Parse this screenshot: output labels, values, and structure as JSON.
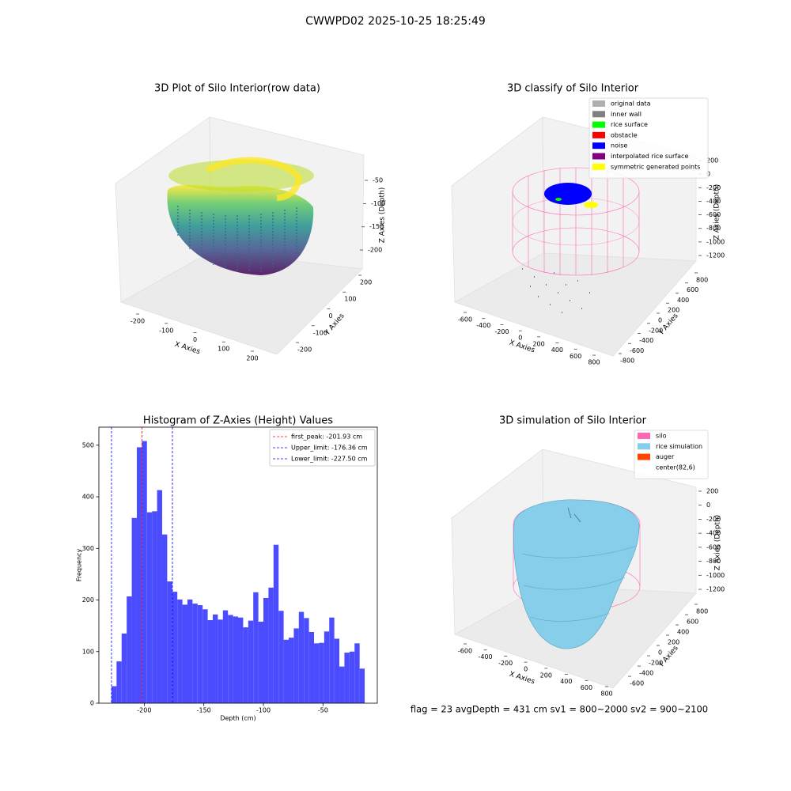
{
  "title": "CWWPD02 2025-10-25 18:25:49",
  "status": "flag = 23  avgDepth = 431 cm  sv1 = 800~2000  sv2 = 900~2100",
  "chart_data": [
    {
      "type": "scatter3d",
      "title": "3D Plot of Silo Interior(row data)",
      "xlabel": "X Axies",
      "ylabel": "Y Axies",
      "zlabel": "Z Axies (Depth)",
      "xlim": [
        -270,
        270
      ],
      "xticks": [
        -200,
        -100,
        0,
        100,
        200
      ],
      "ylim": [
        -270,
        270
      ],
      "yticks": [
        -200,
        -100,
        0,
        100,
        200
      ],
      "zlim": [
        -230,
        -30
      ],
      "zticks": [
        -50,
        -100,
        -150,
        -200
      ]
    },
    {
      "type": "scatter3d",
      "title": "3D classify of Silo Interior",
      "xlabel": "X Axies",
      "ylabel": "Y Axies",
      "zlabel": "Z Axies (Depth)",
      "xlim": [
        -750,
        900
      ],
      "xticks": [
        -600,
        -400,
        -200,
        0,
        200,
        400,
        600,
        800
      ],
      "ylim": [
        -950,
        950
      ],
      "yticks": [
        -800,
        -600,
        -400,
        -200,
        0,
        200,
        400,
        600,
        800
      ],
      "zlim": [
        -1300,
        300
      ],
      "zticks": [
        200,
        0,
        -200,
        -400,
        -600,
        -800,
        -1000,
        -1200
      ],
      "legend_entries": [
        {
          "name": "original data",
          "color": "#b0b0b0"
        },
        {
          "name": "inner wall",
          "color": "#808080"
        },
        {
          "name": "rice surface",
          "color": "#00ff00"
        },
        {
          "name": "obstacle",
          "color": "#ff0000"
        },
        {
          "name": "noise",
          "color": "#0000ff"
        },
        {
          "name": "interpolated rice surface",
          "color": "#800080"
        },
        {
          "name": "symmetric generated points",
          "color": "#ffff00"
        }
      ]
    },
    {
      "type": "histogram",
      "title": "Histogram of Z-Axies (Height) Values",
      "xlabel": "Depth (cm)",
      "ylabel": "Frequency",
      "color": "#4c4cff",
      "bins": [
        -227.5,
        -223.25,
        -219,
        -214.75,
        -210.5,
        -206.25,
        -202,
        -197.75,
        -193.5,
        -189.25,
        -185,
        -180.75,
        -176.5,
        -172.25,
        -168,
        -163.75,
        -159.5,
        -155.25,
        -151,
        -146.75,
        -142.5,
        -138.25,
        -134,
        -129.75,
        -125.5,
        -121.25,
        -117,
        -112.75,
        -108.5,
        -104.25,
        -100,
        -95.75,
        -91.5,
        -87.25,
        -83,
        -78.75,
        -74.5,
        -70.25,
        -66,
        -61.75,
        -57.5,
        -53.25,
        -49,
        -44.75,
        -40.5,
        -36.25,
        -32,
        -27.75,
        -23.5,
        -19.25,
        -15
      ],
      "counts": [
        33,
        81,
        135,
        207,
        359,
        496,
        508,
        370,
        372,
        413,
        327,
        236,
        216,
        201,
        191,
        201,
        193,
        190,
        182,
        161,
        172,
        162,
        180,
        171,
        168,
        166,
        147,
        160,
        215,
        158,
        204,
        224,
        307,
        179,
        123,
        127,
        145,
        177,
        165,
        138,
        116,
        117,
        139,
        166,
        125,
        71,
        98,
        100,
        116,
        67
      ],
      "xlim": [
        -238.1,
        -4.4
      ],
      "xticks": [
        -200,
        -150,
        -100,
        -50
      ],
      "ylim": [
        0,
        535
      ],
      "yticks": [
        0,
        100,
        200,
        300,
        400,
        500
      ],
      "vlines": [
        {
          "name": "first_peak: -201.93 cm",
          "value": -201.93,
          "color": "#ff0000"
        },
        {
          "name": "Upper_limit: -176.36 cm",
          "value": -176.36,
          "color": "#0000ff"
        },
        {
          "name": "Lower_limit: -227.50 cm",
          "value": -227.5,
          "color": "#0000ff"
        }
      ],
      "legend": "upper right"
    },
    {
      "type": "surface3d",
      "title": "3D simulation of Silo Interior",
      "xlabel": "X Axies",
      "ylabel": "Y Axies",
      "zlabel": "Z Axies (Depth)",
      "xlim": [
        -750,
        900
      ],
      "xticks": [
        -600,
        -400,
        -200,
        0,
        200,
        400,
        600,
        800
      ],
      "ylim": [
        -750,
        950
      ],
      "yticks": [
        -600,
        -400,
        -200,
        0,
        200,
        400,
        600,
        800
      ],
      "zlim": [
        -1300,
        300
      ],
      "zticks": [
        200,
        0,
        -200,
        -400,
        -600,
        -800,
        -1000,
        -1200
      ],
      "legend_entries": [
        {
          "name": "silo",
          "color": "#ff69b4"
        },
        {
          "name": "rice simulation",
          "color": "#87ceeb"
        },
        {
          "name": "auger",
          "color": "#ff4500"
        },
        {
          "name": "center(82,6)"
        }
      ]
    }
  ]
}
